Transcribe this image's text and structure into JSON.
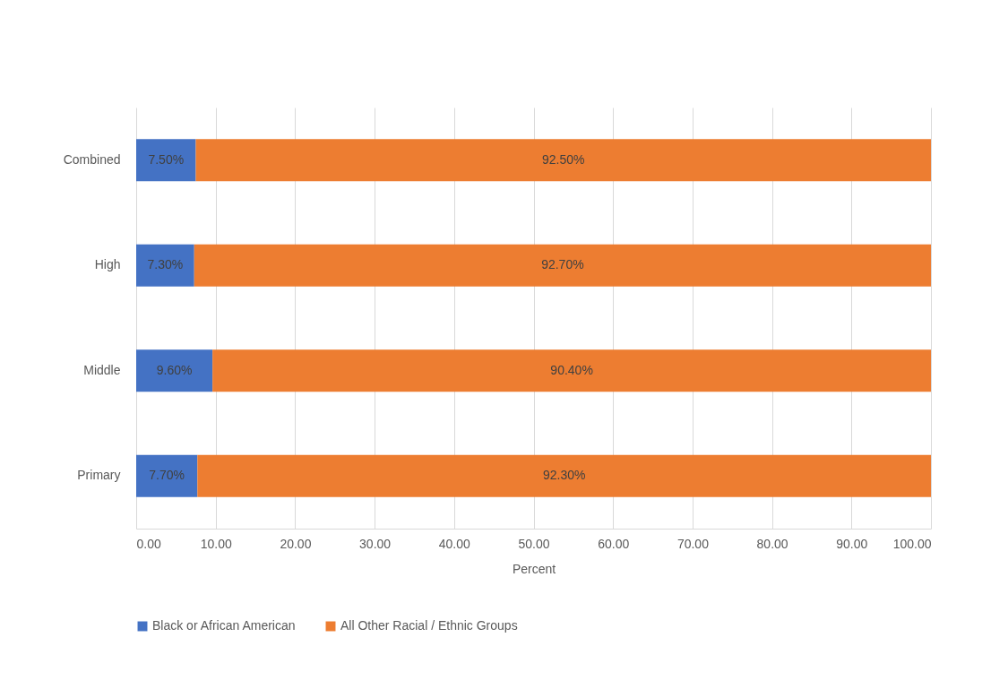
{
  "chart_data": {
    "type": "bar",
    "orientation": "horizontal",
    "stacked": true,
    "xlabel": "Percent",
    "categories": [
      "Combined",
      "High",
      "Middle",
      "Primary"
    ],
    "series": [
      {
        "name": "Black or African American",
        "color": "#4472c4",
        "values": [
          7.5,
          7.3,
          9.6,
          7.7
        ],
        "value_labels": [
          "7.50%",
          "7.30%",
          "9.60%",
          "7.70%"
        ]
      },
      {
        "name": "All Other Racial / Ethnic Groups",
        "color": "#ed7d31",
        "values": [
          92.5,
          92.7,
          90.4,
          92.3
        ],
        "value_labels": [
          "92.50%",
          "92.70%",
          "90.40%",
          "92.30%"
        ]
      }
    ],
    "xlim": [
      0,
      100
    ],
    "xticks": [
      {
        "value": 0,
        "label": "0.00"
      },
      {
        "value": 10,
        "label": "10.00"
      },
      {
        "value": 20,
        "label": "20.00"
      },
      {
        "value": 30,
        "label": "30.00"
      },
      {
        "value": 40,
        "label": "40.00"
      },
      {
        "value": 50,
        "label": "50.00"
      },
      {
        "value": 60,
        "label": "60.00"
      },
      {
        "value": 70,
        "label": "70.00"
      },
      {
        "value": 80,
        "label": "80.00"
      },
      {
        "value": 90,
        "label": "90.00"
      },
      {
        "value": 100,
        "label": "100.00"
      }
    ],
    "grid": "x",
    "legend": "bottom"
  }
}
